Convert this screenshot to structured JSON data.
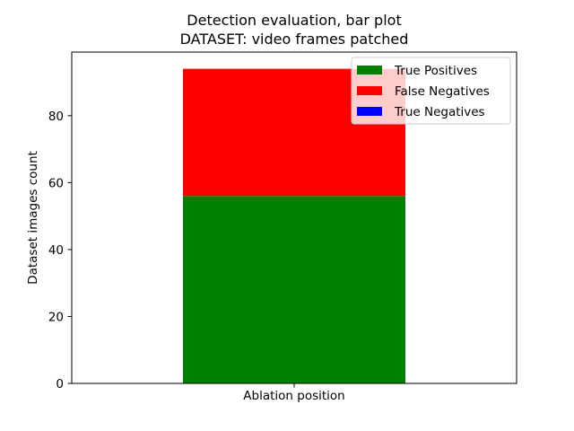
{
  "chart_data": {
    "type": "bar",
    "stacked": true,
    "title": "Detection evaluation, bar plot",
    "subtitle": "DATASET: video frames patched",
    "xlabel": "Ablation position",
    "ylabel": "Dataset images count",
    "categories": [
      ""
    ],
    "ylim": [
      0,
      99
    ],
    "yticks": [
      "0",
      "20",
      "40",
      "60",
      "80"
    ],
    "grid": false,
    "legend_position": "top-right",
    "series": [
      {
        "name": "True Positives",
        "values": [
          56
        ],
        "color": "#008000"
      },
      {
        "name": "False Negatives",
        "values": [
          38
        ],
        "color": "#ff0000"
      },
      {
        "name": "True Negatives",
        "values": [
          0
        ],
        "color": "#0000ff"
      }
    ]
  }
}
